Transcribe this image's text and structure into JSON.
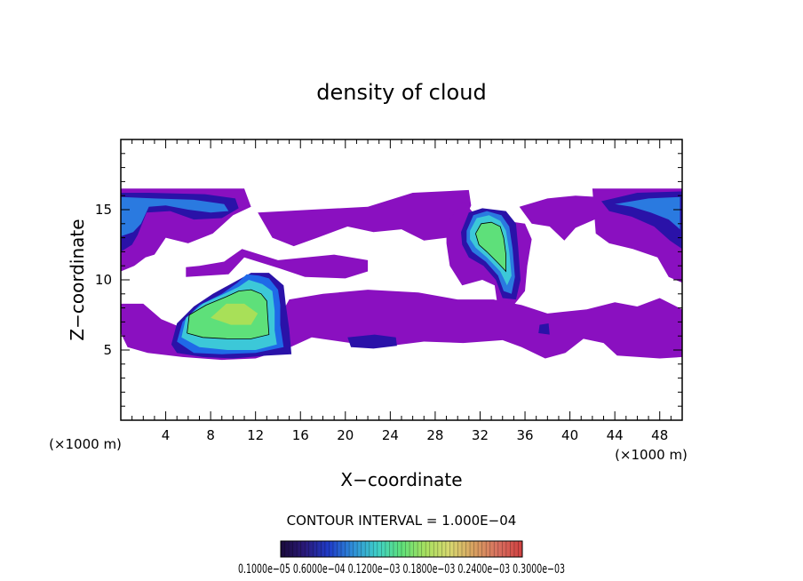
{
  "chart_data": {
    "type": "heatmap",
    "title": "density of cloud",
    "xlabel": "X−coordinate",
    "ylabel": "Z−coordinate",
    "x_unit": "(×1000 m)",
    "y_unit": "(×1000 m)",
    "xlim": [
      0,
      50
    ],
    "ylim": [
      0,
      20
    ],
    "x_ticks": [
      4,
      8,
      12,
      16,
      20,
      24,
      28,
      32,
      36,
      40,
      44,
      48
    ],
    "y_ticks": [
      5,
      10,
      15
    ],
    "contour_interval_text": "CONTOUR INTERVAL = 1.000E−04",
    "colorbar_labels_text": "0.1000e−05 0.6000e−04 0.1200e−03 0.1800e−03 0.2400e−03 0.3000e−03",
    "colorbar_colors": [
      "#1a0a3a",
      "#2a1a7a",
      "#1f3cc8",
      "#2f8fd8",
      "#3fd0c8",
      "#5ee07a",
      "#a8e060",
      "#d8d870",
      "#d8a060",
      "#d87060",
      "#d04040"
    ],
    "regions": [
      {
        "name": "upper-left-cloud",
        "x": [
          0,
          10
        ],
        "z": [
          12,
          16.5
        ],
        "peak": "blue"
      },
      {
        "name": "lower-left-core",
        "x": [
          5.5,
          15
        ],
        "z": [
          4.5,
          10.5
        ],
        "peak": "green"
      },
      {
        "name": "central-upper-cloud",
        "x": [
          30,
          36
        ],
        "z": [
          8.5,
          15.5
        ],
        "peak": "green"
      },
      {
        "name": "upper-right-cloud",
        "x": [
          42,
          50
        ],
        "z": [
          12,
          16.5
        ],
        "peak": "blue"
      },
      {
        "name": "mid-layer",
        "x": [
          0,
          50
        ],
        "z": [
          4.3,
          16.5
        ],
        "peak": "purple"
      }
    ],
    "grid": false,
    "legend": "colorbar-bottom"
  }
}
